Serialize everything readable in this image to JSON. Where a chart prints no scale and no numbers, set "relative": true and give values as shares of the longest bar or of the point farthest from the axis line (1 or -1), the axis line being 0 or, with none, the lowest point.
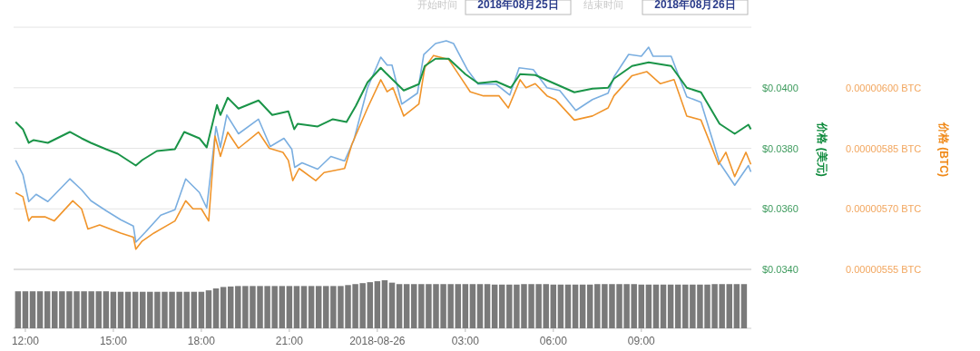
{
  "chart_data": [
    {
      "type": "line",
      "annotations": [
        "开始时间",
        "2018年08月25日",
        "结束时间",
        "2018年08月26日"
      ],
      "ylabel": "价格 (美元)",
      "y2label": "价格 (BTC)",
      "grid": "y",
      "tick_labels": "y",
      "xlim": [
        "2018-08-25T11:36",
        "2018-08-26T12:45"
      ],
      "ylim": [
        0.034,
        0.042
      ],
      "yticks": [
        {
          "value": 0.034,
          "label": "$0.0340"
        },
        {
          "value": 0.036,
          "label": "$0.0360"
        },
        {
          "value": 0.038,
          "label": "$0.0380"
        },
        {
          "value": 0.04,
          "label": "$0.0400"
        },
        {
          "value": 0.042,
          "label": null
        }
      ],
      "y2lim": [
        5.55e-06,
        6.15e-06
      ],
      "y2ticks": [
        {
          "value": 5.55e-06,
          "label": "0.00000555 BTC"
        },
        {
          "value": 5.7e-06,
          "label": "0.00000570 BTC"
        },
        {
          "value": 5.85e-06,
          "label": "0.00000585 BTC"
        },
        {
          "value": 6e-06,
          "label": "0.00000600 BTC"
        }
      ],
      "series": [
        {
          "color": "#7aaee0",
          "x": [
            "2018-08-25T11:40",
            "2018-08-25T11:55",
            "2018-08-25T12:07",
            "2018-08-25T12:22",
            "2018-08-25T12:46",
            "2018-08-25T13:31",
            "2018-08-25T13:55",
            "2018-08-25T14:14",
            "2018-08-25T14:45",
            "2018-08-25T15:15",
            "2018-08-25T15:41",
            "2018-08-25T15:46",
            "2018-08-25T16:05",
            "2018-08-25T16:37",
            "2018-08-25T17:06",
            "2018-08-25T17:28",
            "2018-08-25T17:56",
            "2018-08-25T18:11",
            "2018-08-25T18:30",
            "2018-08-25T18:39",
            "2018-08-25T18:52",
            "2018-08-25T19:16",
            "2018-08-25T19:57",
            "2018-08-25T20:21",
            "2018-08-25T20:49",
            "2018-08-25T21:05",
            "2018-08-25T21:11",
            "2018-08-25T21:26",
            "2018-08-25T21:58",
            "2018-08-25T22:25",
            "2018-08-25T22:53",
            "2018-08-25T23:12",
            "2018-08-25T23:40",
            "2018-08-26T00:07",
            "2018-08-26T00:20",
            "2018-08-26T00:30",
            "2018-08-26T00:50",
            "2018-08-26T01:22",
            "2018-08-26T01:35",
            "2018-08-26T01:59",
            "2018-08-26T02:21",
            "2018-08-26T02:36",
            "2018-08-26T03:04",
            "2018-08-26T03:26",
            "2018-08-26T04:03",
            "2018-08-26T04:31",
            "2018-08-26T04:50",
            "2018-08-26T05:19",
            "2018-08-26T05:47",
            "2018-08-26T06:13",
            "2018-08-26T06:46",
            "2018-08-26T07:20",
            "2018-08-26T07:52",
            "2018-08-26T08:04",
            "2018-08-26T08:34",
            "2018-08-26T09:00",
            "2018-08-26T09:15",
            "2018-08-26T09:24",
            "2018-08-26T10:01",
            "2018-08-26T10:33",
            "2018-08-26T11:02",
            "2018-08-26T11:40",
            "2018-08-26T12:11",
            "2018-08-26T12:39",
            "2018-08-26T12:44"
          ],
          "values": [
            0.03761,
            0.03713,
            0.03624,
            0.03648,
            0.03624,
            0.03699,
            0.03663,
            0.03627,
            0.03594,
            0.03564,
            0.03543,
            0.0349,
            0.03522,
            0.03579,
            0.03597,
            0.03699,
            0.03654,
            0.03603,
            0.03872,
            0.03803,
            0.0391,
            0.03848,
            0.03896,
            0.03806,
            0.03833,
            0.03797,
            0.03737,
            0.03752,
            0.03731,
            0.03773,
            0.03758,
            0.03827,
            0.04,
            0.04101,
            0.04075,
            0.04075,
            0.03946,
            0.03982,
            0.0411,
            0.04146,
            0.04155,
            0.04146,
            0.0406,
            0.04012,
            0.04012,
            0.03976,
            0.04066,
            0.0406,
            0.04,
            0.03991,
            0.03925,
            0.03961,
            0.03982,
            0.04036,
            0.0411,
            0.04104,
            0.04134,
            0.04104,
            0.04104,
            0.0397,
            0.03952,
            0.03752,
            0.03678,
            0.03743,
            0.03722
          ]
        },
        {
          "color": "#f0942a",
          "axis": "y2",
          "x": [
            "2018-08-25T11:40",
            "2018-08-25T11:55",
            "2018-08-25T12:07",
            "2018-08-25T12:13",
            "2018-08-25T12:41",
            "2018-08-25T12:59",
            "2018-08-25T13:37",
            "2018-08-25T13:55",
            "2018-08-25T14:08",
            "2018-08-25T14:32",
            "2018-08-25T15:15",
            "2018-08-25T15:41",
            "2018-08-25T15:46",
            "2018-08-25T15:59",
            "2018-08-25T16:23",
            "2018-08-25T17:06",
            "2018-08-25T17:28",
            "2018-08-25T17:43",
            "2018-08-25T18:00",
            "2018-08-25T18:15",
            "2018-08-25T18:28",
            "2018-08-25T18:39",
            "2018-08-25T18:54",
            "2018-08-25T19:16",
            "2018-08-25T19:57",
            "2018-08-25T20:19",
            "2018-08-25T20:47",
            "2018-08-25T20:58",
            "2018-08-25T21:07",
            "2018-08-25T21:20",
            "2018-08-25T21:54",
            "2018-08-25T22:11",
            "2018-08-25T22:53",
            "2018-08-25T23:08",
            "2018-08-25T23:40",
            "2018-08-26T00:07",
            "2018-08-26T00:20",
            "2018-08-26T00:32",
            "2018-08-26T00:54",
            "2018-08-26T01:25",
            "2018-08-26T01:37",
            "2018-08-26T01:55",
            "2018-08-26T02:26",
            "2018-08-26T03:10",
            "2018-08-26T03:37",
            "2018-08-26T04:09",
            "2018-08-26T04:28",
            "2018-08-26T04:52",
            "2018-08-26T05:04",
            "2018-08-26T05:23",
            "2018-08-26T05:47",
            "2018-08-26T06:05",
            "2018-08-26T06:43",
            "2018-08-26T07:20",
            "2018-08-26T07:52",
            "2018-08-26T08:04",
            "2018-08-26T08:41",
            "2018-08-26T09:11",
            "2018-08-26T09:39",
            "2018-08-26T10:07",
            "2018-08-26T10:33",
            "2018-08-26T11:02",
            "2018-08-26T11:38",
            "2018-08-26T11:53",
            "2018-08-26T12:11",
            "2018-08-26T12:34",
            "2018-08-26T12:44"
          ],
          "values": [
            5.74e-06,
            5.73e-06,
            5.67e-06,
            5.68e-06,
            5.68e-06,
            5.67e-06,
            5.72e-06,
            5.7e-06,
            5.65e-06,
            5.66e-06,
            5.64e-06,
            5.63e-06,
            5.6e-06,
            5.62e-06,
            5.64e-06,
            5.67e-06,
            5.72e-06,
            5.7e-06,
            5.7e-06,
            5.67e-06,
            5.88e-06,
            5.83e-06,
            5.89e-06,
            5.85e-06,
            5.89e-06,
            5.85e-06,
            5.84e-06,
            5.82e-06,
            5.77e-06,
            5.8e-06,
            5.77e-06,
            5.79e-06,
            5.8e-06,
            5.86e-06,
            5.95e-06,
            6.02e-06,
            5.99e-06,
            6e-06,
            5.93e-06,
            5.96e-06,
            6.05e-06,
            6.08e-06,
            6.07e-06,
            5.99e-06,
            5.98e-06,
            5.98e-06,
            5.95e-06,
            6.02e-06,
            6e-06,
            6.01e-06,
            5.98e-06,
            5.97e-06,
            5.92e-06,
            5.93e-06,
            5.95e-06,
            5.98e-06,
            6.03e-06,
            6.04e-06,
            6.01e-06,
            6.02e-06,
            5.93e-06,
            5.92e-06,
            5.81e-06,
            5.84e-06,
            5.78e-06,
            5.84e-06,
            5.81e-06
          ]
        },
        {
          "color": "#1a9448",
          "x": [
            "2018-08-25T11:40",
            "2018-08-25T11:55",
            "2018-08-25T12:07",
            "2018-08-25T12:17",
            "2018-08-25T12:46",
            "2018-08-25T13:31",
            "2018-08-25T13:55",
            "2018-08-25T14:14",
            "2018-08-25T14:45",
            "2018-08-25T15:09",
            "2018-08-25T15:46",
            "2018-08-25T15:59",
            "2018-08-25T16:29",
            "2018-08-25T17:06",
            "2018-08-25T17:25",
            "2018-08-25T17:56",
            "2018-08-25T18:11",
            "2018-08-25T18:32",
            "2018-08-25T18:39",
            "2018-08-25T18:54",
            "2018-08-25T19:16",
            "2018-08-25T19:57",
            "2018-08-25T20:25",
            "2018-08-25T20:58",
            "2018-08-25T21:10",
            "2018-08-25T21:17",
            "2018-08-25T21:58",
            "2018-08-25T22:29",
            "2018-08-25T22:57",
            "2018-08-25T23:16",
            "2018-08-25T23:40",
            "2018-08-26T00:07",
            "2018-08-26T00:16",
            "2018-08-26T00:54",
            "2018-08-26T01:25",
            "2018-08-26T01:37",
            "2018-08-26T01:59",
            "2018-08-26T02:26",
            "2018-08-26T03:00",
            "2018-08-26T03:26",
            "2018-08-26T04:03",
            "2018-08-26T04:33",
            "2018-08-26T04:52",
            "2018-08-26T05:23",
            "2018-08-26T06:05",
            "2018-08-26T06:43",
            "2018-08-26T07:20",
            "2018-08-26T07:52",
            "2018-08-26T08:04",
            "2018-08-26T08:41",
            "2018-08-26T09:15",
            "2018-08-26T10:01",
            "2018-08-26T10:33",
            "2018-08-26T11:02",
            "2018-08-26T11:40",
            "2018-08-26T12:11",
            "2018-08-26T12:39",
            "2018-08-26T12:44"
          ],
          "values": [
            0.03887,
            0.03863,
            0.03818,
            0.03827,
            0.03818,
            0.03854,
            0.03833,
            0.03818,
            0.03797,
            0.03782,
            0.03743,
            0.03761,
            0.03791,
            0.03797,
            0.03854,
            0.03833,
            0.03803,
            0.03943,
            0.0391,
            0.03967,
            0.03931,
            0.03958,
            0.0391,
            0.03922,
            0.03863,
            0.03881,
            0.03872,
            0.03896,
            0.03887,
            0.0394,
            0.04018,
            0.04066,
            0.04051,
            0.03991,
            0.04012,
            0.04072,
            0.04096,
            0.04096,
            0.04045,
            0.04015,
            0.04021,
            0.04,
            0.04045,
            0.04042,
            0.04012,
            0.03985,
            0.03997,
            0.04,
            0.0403,
            0.04072,
            0.04084,
            0.04072,
            0.04,
            0.03985,
            0.03881,
            0.03848,
            0.03878,
            0.03863
          ]
        }
      ]
    },
    {
      "type": "bar",
      "relative": true,
      "tick_labels": "x",
      "color": "#7a7a7a",
      "xlim": [
        "2018-08-25T11:36",
        "2018-08-26T12:45"
      ],
      "xticks": [
        {
          "value": "2018-08-25T12:00",
          "label": "12:00"
        },
        {
          "value": "2018-08-25T15:00",
          "label": "15:00"
        },
        {
          "value": "2018-08-25T18:00",
          "label": "18:00"
        },
        {
          "value": "2018-08-25T21:00",
          "label": "21:00"
        },
        {
          "value": "2018-08-26",
          "label": "2018-08-26"
        },
        {
          "value": "2018-08-26T03:00",
          "label": "03:00"
        },
        {
          "value": "2018-08-26T06:00",
          "label": "06:00"
        },
        {
          "value": "2018-08-26T09:00",
          "label": "09:00"
        }
      ],
      "x": [
        "2018-08-25T11:45",
        "2018-08-25T12:00",
        "2018-08-25T12:15",
        "2018-08-25T12:30",
        "2018-08-25T12:45",
        "2018-08-25T13:00",
        "2018-08-25T13:15",
        "2018-08-25T13:30",
        "2018-08-25T13:45",
        "2018-08-25T14:00",
        "2018-08-25T14:15",
        "2018-08-25T14:30",
        "2018-08-25T14:45",
        "2018-08-25T15:00",
        "2018-08-25T15:15",
        "2018-08-25T15:30",
        "2018-08-25T15:45",
        "2018-08-25T16:00",
        "2018-08-25T16:15",
        "2018-08-25T16:30",
        "2018-08-25T16:45",
        "2018-08-25T17:00",
        "2018-08-25T17:15",
        "2018-08-25T17:30",
        "2018-08-25T17:45",
        "2018-08-25T18:00",
        "2018-08-25T18:15",
        "2018-08-25T18:30",
        "2018-08-25T18:45",
        "2018-08-25T19:00",
        "2018-08-25T19:15",
        "2018-08-25T19:30",
        "2018-08-25T19:45",
        "2018-08-25T20:00",
        "2018-08-25T20:15",
        "2018-08-25T20:30",
        "2018-08-25T20:45",
        "2018-08-25T21:00",
        "2018-08-25T21:15",
        "2018-08-25T21:30",
        "2018-08-25T21:45",
        "2018-08-25T22:00",
        "2018-08-25T22:15",
        "2018-08-25T22:30",
        "2018-08-25T22:45",
        "2018-08-25T23:00",
        "2018-08-25T23:15",
        "2018-08-25T23:30",
        "2018-08-25T23:45",
        "2018-08-26T00:00",
        "2018-08-26T00:15",
        "2018-08-26T00:30",
        "2018-08-26T00:45",
        "2018-08-26T01:00",
        "2018-08-26T01:15",
        "2018-08-26T01:30",
        "2018-08-26T01:45",
        "2018-08-26T02:00",
        "2018-08-26T02:15",
        "2018-08-26T02:30",
        "2018-08-26T02:45",
        "2018-08-26T03:00",
        "2018-08-26T03:15",
        "2018-08-26T03:30",
        "2018-08-26T03:45",
        "2018-08-26T04:00",
        "2018-08-26T04:15",
        "2018-08-26T04:30",
        "2018-08-26T04:45",
        "2018-08-26T05:00",
        "2018-08-26T05:15",
        "2018-08-26T05:30",
        "2018-08-26T05:45",
        "2018-08-26T06:00",
        "2018-08-26T06:15",
        "2018-08-26T06:30",
        "2018-08-26T06:45",
        "2018-08-26T07:00",
        "2018-08-26T07:15",
        "2018-08-26T07:30",
        "2018-08-26T07:45",
        "2018-08-26T08:00",
        "2018-08-26T08:15",
        "2018-08-26T08:30",
        "2018-08-26T08:45",
        "2018-08-26T09:00",
        "2018-08-26T09:15",
        "2018-08-26T09:30",
        "2018-08-26T09:45",
        "2018-08-26T10:00",
        "2018-08-26T10:15",
        "2018-08-26T10:30",
        "2018-08-26T10:45",
        "2018-08-26T11:00",
        "2018-08-26T11:15",
        "2018-08-26T11:30",
        "2018-08-26T11:45",
        "2018-08-26T12:00",
        "2018-08-26T12:15",
        "2018-08-26T12:30"
      ],
      "values": [
        0.77,
        0.77,
        0.77,
        0.77,
        0.77,
        0.77,
        0.77,
        0.77,
        0.77,
        0.77,
        0.77,
        0.77,
        0.77,
        0.76,
        0.76,
        0.76,
        0.76,
        0.76,
        0.76,
        0.76,
        0.76,
        0.76,
        0.76,
        0.76,
        0.76,
        0.76,
        0.79,
        0.83,
        0.86,
        0.87,
        0.88,
        0.88,
        0.88,
        0.88,
        0.88,
        0.88,
        0.88,
        0.88,
        0.88,
        0.88,
        0.88,
        0.88,
        0.88,
        0.88,
        0.88,
        0.9,
        0.92,
        0.94,
        0.96,
        0.98,
        1,
        0.95,
        0.92,
        0.92,
        0.92,
        0.92,
        0.92,
        0.92,
        0.92,
        0.92,
        0.92,
        0.92,
        0.92,
        0.92,
        0.92,
        0.91,
        0.91,
        0.91,
        0.91,
        0.92,
        0.92,
        0.92,
        0.92,
        0.91,
        0.91,
        0.91,
        0.91,
        0.91,
        0.91,
        0.92,
        0.92,
        0.92,
        0.92,
        0.92,
        0.92,
        0.91,
        0.91,
        0.91,
        0.91,
        0.91,
        0.91,
        0.91,
        0.91,
        0.91,
        0.91,
        0.92,
        0.92,
        0.92,
        0.92,
        0.92
      ]
    }
  ]
}
